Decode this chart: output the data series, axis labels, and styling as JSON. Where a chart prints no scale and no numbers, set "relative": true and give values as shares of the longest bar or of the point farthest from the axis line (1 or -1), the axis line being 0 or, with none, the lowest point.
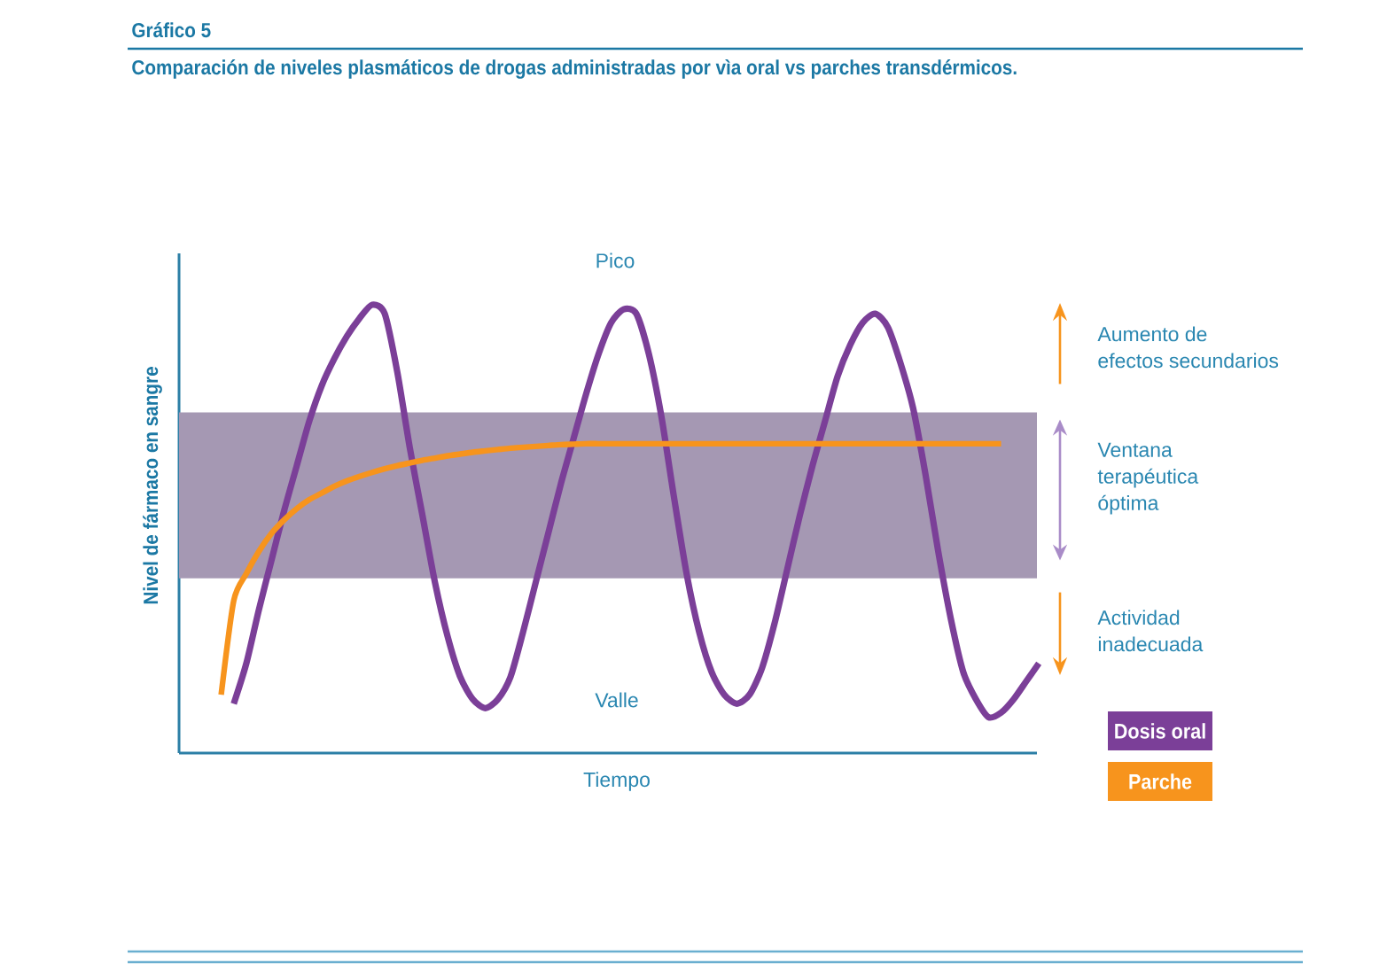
{
  "chart_data": {
    "type": "line",
    "title": "Gráfico 5",
    "subtitle": "Comparación de niveles plasmáticos de drogas administradas por vìa oral vs parches transdérmicos.",
    "xlabel": "Tiempo",
    "ylabel": "Nivel de fármaco en sangre",
    "relative": true,
    "categories": [
      null,
      null,
      null,
      null,
      null,
      null,
      null,
      null,
      null,
      null,
      null,
      null,
      null,
      null,
      null,
      null,
      null,
      null,
      null,
      null,
      null,
      null,
      null,
      null,
      null,
      null,
      null,
      null,
      null,
      null,
      null,
      null,
      null,
      null,
      null,
      null,
      null,
      null,
      null,
      null,
      null,
      null,
      null,
      null,
      null,
      null,
      null,
      null,
      null,
      null,
      null,
      null,
      null,
      null,
      null,
      null,
      null,
      null,
      null,
      null,
      null,
      null,
      null,
      null,
      null,
      null
    ],
    "series": [
      {
        "name": "Dosis oral",
        "color": "#7b3f98",
        "values": [
          null,
          0.11,
          0.2,
          0.32,
          0.43,
          0.54,
          0.64,
          0.74,
          0.82,
          0.88,
          0.93,
          0.97,
          1.0,
          0.98,
          0.85,
          0.68,
          0.53,
          0.38,
          0.26,
          0.17,
          0.12,
          0.1,
          0.12,
          0.17,
          0.27,
          0.38,
          0.49,
          0.6,
          0.7,
          0.8,
          0.89,
          0.96,
          0.99,
          0.98,
          0.89,
          0.75,
          0.57,
          0.4,
          0.27,
          0.18,
          0.13,
          0.11,
          0.13,
          0.19,
          0.29,
          0.41,
          0.53,
          0.64,
          0.74,
          0.84,
          0.91,
          0.96,
          0.98,
          0.95,
          0.87,
          0.77,
          0.62,
          0.45,
          0.3,
          0.18,
          0.12,
          0.08,
          0.09,
          0.12,
          0.16,
          0.2
        ]
      },
      {
        "name": "Parche",
        "color": "#f7941d",
        "values": [
          0.13,
          0.34,
          0.4,
          0.45,
          0.49,
          0.52,
          0.545,
          0.565,
          0.58,
          0.595,
          0.607,
          0.617,
          0.626,
          0.634,
          0.641,
          0.647,
          0.653,
          0.658,
          0.663,
          0.667,
          0.671,
          0.674,
          0.677,
          0.68,
          0.682,
          0.684,
          0.686,
          0.688,
          0.689,
          0.69,
          0.69,
          0.69,
          0.69,
          0.69,
          0.69,
          0.69,
          0.69,
          0.69,
          0.69,
          0.69,
          0.69,
          0.69,
          0.69,
          0.69,
          0.69,
          0.69,
          0.69,
          0.69,
          0.69,
          0.69,
          0.69,
          0.69,
          0.69,
          0.69,
          0.69,
          0.69,
          0.69,
          0.69,
          0.69,
          0.69,
          0.69,
          0.69,
          0.69,
          null,
          null,
          null
        ]
      }
    ],
    "bands": [
      {
        "axis": "y",
        "from": 0.39,
        "to": 0.76,
        "label": "Ventana terapéutica óptima",
        "color": "#a598b3"
      }
    ],
    "annotations": [
      "Pico",
      "Valle",
      "Aumento de efectos secundarios",
      "Actividad inadecuada"
    ],
    "legend": "bottom right",
    "marker": "none"
  }
}
